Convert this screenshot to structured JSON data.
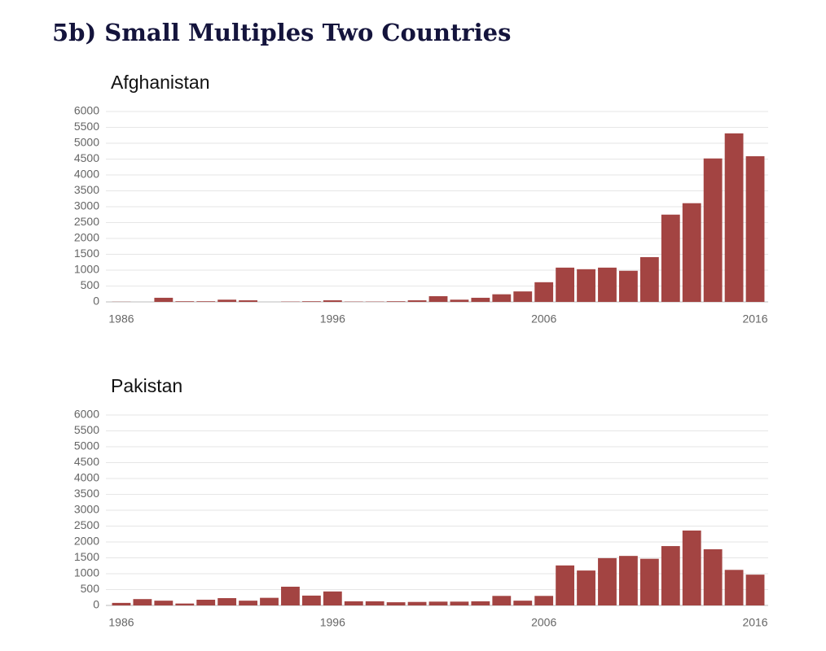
{
  "title": "5b) Small Multiples Two Countries",
  "chart_data": [
    {
      "type": "bar",
      "title": "Afghanistan",
      "color": "#a34442",
      "grid": true,
      "x": [
        1986,
        1987,
        1988,
        1989,
        1990,
        1991,
        1992,
        1993,
        1994,
        1995,
        1996,
        1997,
        1998,
        1999,
        2000,
        2001,
        2002,
        2003,
        2004,
        2005,
        2006,
        2007,
        2008,
        2009,
        2010,
        2011,
        2012,
        2013,
        2014,
        2015,
        2016
      ],
      "values": [
        5,
        0,
        130,
        20,
        20,
        70,
        50,
        0,
        10,
        20,
        50,
        10,
        10,
        20,
        50,
        180,
        70,
        130,
        240,
        330,
        620,
        1080,
        1030,
        1080,
        980,
        1410,
        2750,
        3110,
        4520,
        5310,
        4590
      ],
      "xlim": [
        1985.5,
        2016.5
      ],
      "xticks": [
        1986,
        1996,
        2006,
        2016
      ],
      "ylim": [
        0,
        6000
      ],
      "yticks": [
        0,
        500,
        1000,
        1500,
        2000,
        2500,
        3000,
        3500,
        4000,
        4500,
        5000,
        5500,
        6000
      ]
    },
    {
      "type": "bar",
      "title": "Pakistan",
      "color": "#a34442",
      "grid": true,
      "x": [
        1986,
        1987,
        1988,
        1989,
        1990,
        1991,
        1992,
        1993,
        1994,
        1995,
        1996,
        1997,
        1998,
        1999,
        2000,
        2001,
        2002,
        2003,
        2004,
        2005,
        2006,
        2007,
        2008,
        2009,
        2010,
        2011,
        2012,
        2013,
        2014,
        2015,
        2016
      ],
      "values": [
        80,
        200,
        150,
        60,
        180,
        230,
        150,
        240,
        590,
        310,
        440,
        130,
        130,
        100,
        110,
        120,
        120,
        130,
        300,
        150,
        300,
        1260,
        1100,
        1490,
        1560,
        1470,
        1870,
        2360,
        1770,
        1120,
        970
      ],
      "xlim": [
        1985.5,
        2016.5
      ],
      "xticks": [
        1986,
        1996,
        2006,
        2016
      ],
      "ylim": [
        0,
        6000
      ],
      "yticks": [
        0,
        500,
        1000,
        1500,
        2000,
        2500,
        3000,
        3500,
        4000,
        4500,
        5000,
        5500,
        6000
      ]
    }
  ]
}
